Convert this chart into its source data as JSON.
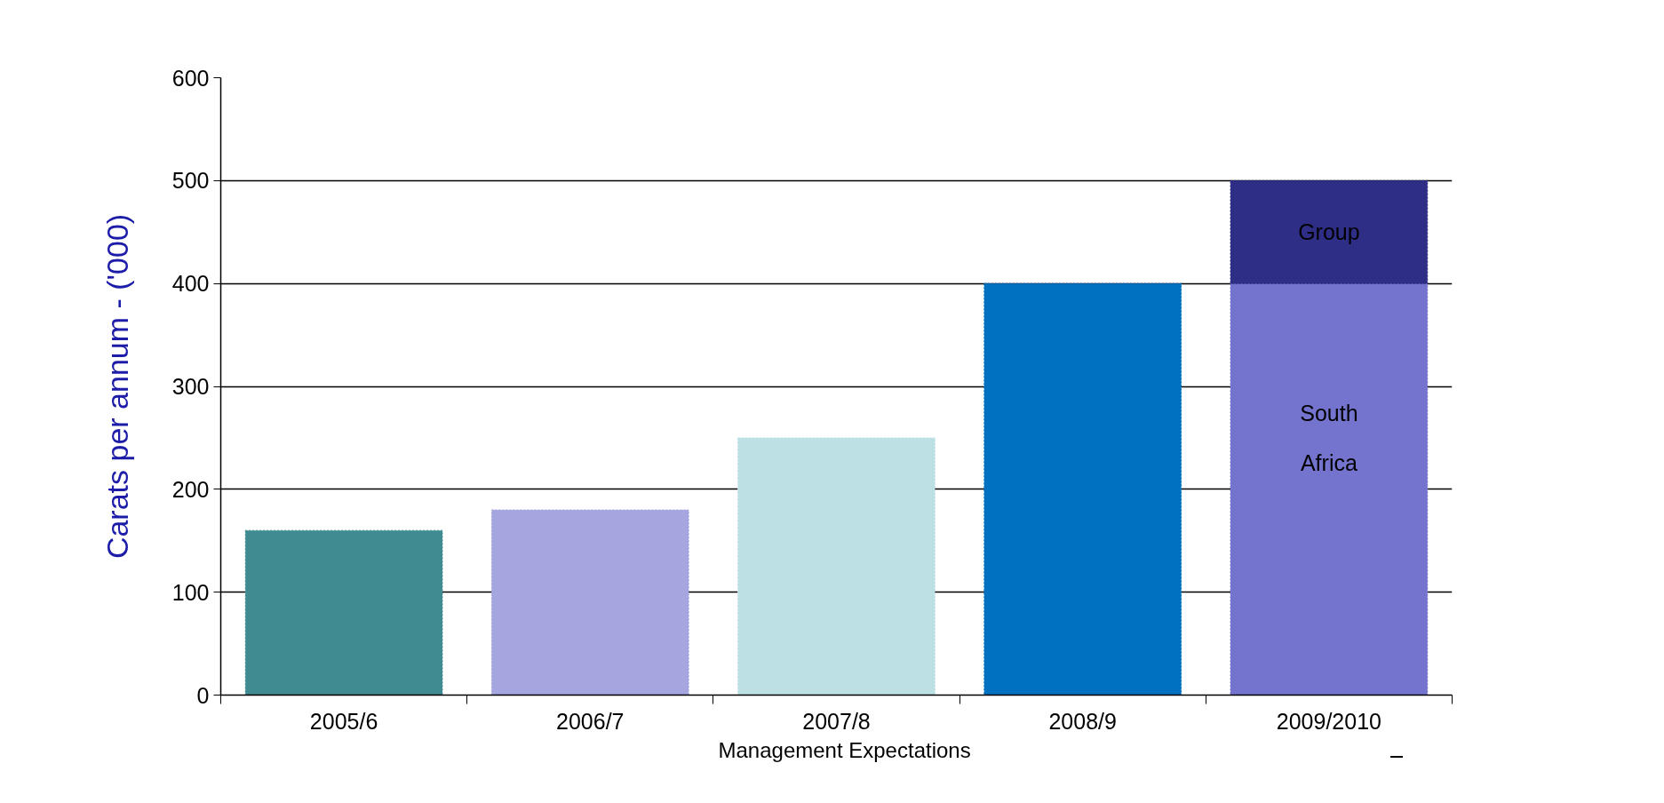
{
  "chart_data": {
    "type": "bar",
    "stacked": true,
    "ylabel": "Carats per annum - ('000)",
    "categories": [
      "2005/6",
      "2006/7",
      "2007/8",
      "2008/9",
      "2009/2010"
    ],
    "series": [
      {
        "values": [
          160,
          180,
          250,
          400,
          400
        ],
        "colors": [
          "#3f8b91",
          "#a5a5df",
          "#bce0e4",
          "#0070c0",
          "#7474cf"
        ]
      },
      {
        "values": [
          null,
          null,
          null,
          null,
          100
        ],
        "color": "#2e2e86"
      }
    ],
    "ylim": [
      0,
      600
    ],
    "yticks": [
      0,
      100,
      200,
      300,
      400,
      500,
      600
    ],
    "grid": "y",
    "annotations": [
      "South Africa",
      "Group",
      "Management Expectations"
    ]
  }
}
